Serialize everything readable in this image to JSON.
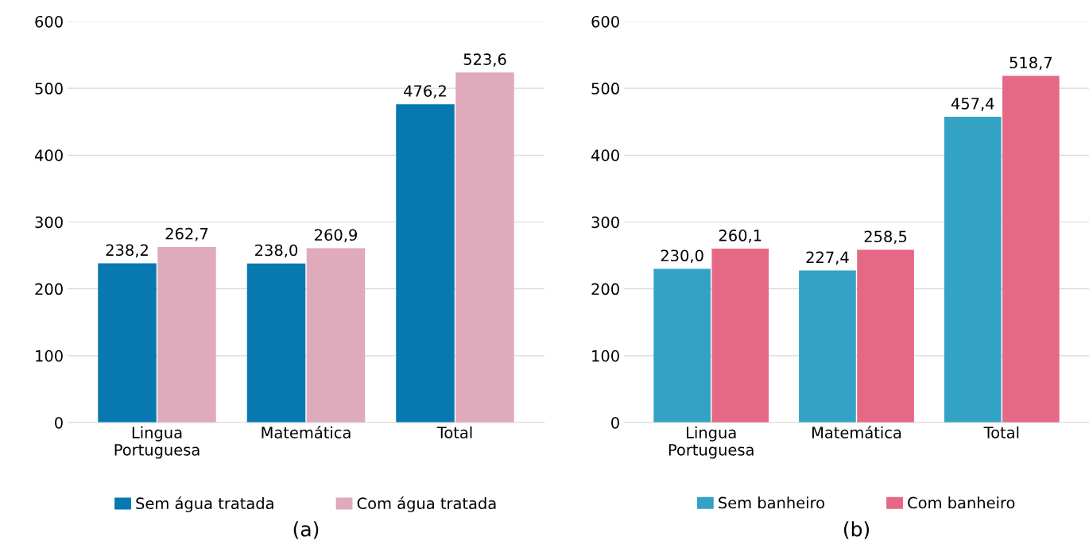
{
  "chart_data": [
    {
      "type": "bar",
      "categories": [
        "Lingua\nPortuguesa",
        "Matemática",
        "Total"
      ],
      "series": [
        {
          "name": "Sem água tratada",
          "color": "#0878b0",
          "values": [
            238.2,
            238.0,
            476.2
          ]
        },
        {
          "name": "Com água tratada",
          "color": "#dfaabb",
          "values": [
            262.7,
            260.9,
            523.6
          ]
        }
      ],
      "value_labels": [
        [
          "238,2",
          "238,0",
          "476,2"
        ],
        [
          "262,7",
          "260,9",
          "523,6"
        ]
      ],
      "ylim": [
        0,
        600
      ],
      "yticks": [
        0,
        100,
        200,
        300,
        400,
        500,
        600
      ],
      "grid": "y",
      "legend": "bottom",
      "annotations": [
        "(a)"
      ]
    },
    {
      "type": "bar",
      "categories": [
        "Lingua\nPortuguesa",
        "Matemática",
        "Total"
      ],
      "series": [
        {
          "name": "Sem banheiro",
          "color": "#33a2c4",
          "values": [
            230.0,
            227.4,
            457.4
          ]
        },
        {
          "name": "Com banheiro",
          "color": "#e56884",
          "values": [
            260.1,
            258.5,
            518.7
          ]
        }
      ],
      "value_labels": [
        [
          "230,0",
          "227,4",
          "457,4"
        ],
        [
          "260,1",
          "258,5",
          "518,7"
        ]
      ],
      "ylim": [
        0,
        600
      ],
      "yticks": [
        0,
        100,
        200,
        300,
        400,
        500,
        600
      ],
      "grid": "y",
      "legend": "bottom",
      "annotations": [
        "(b)"
      ]
    }
  ]
}
